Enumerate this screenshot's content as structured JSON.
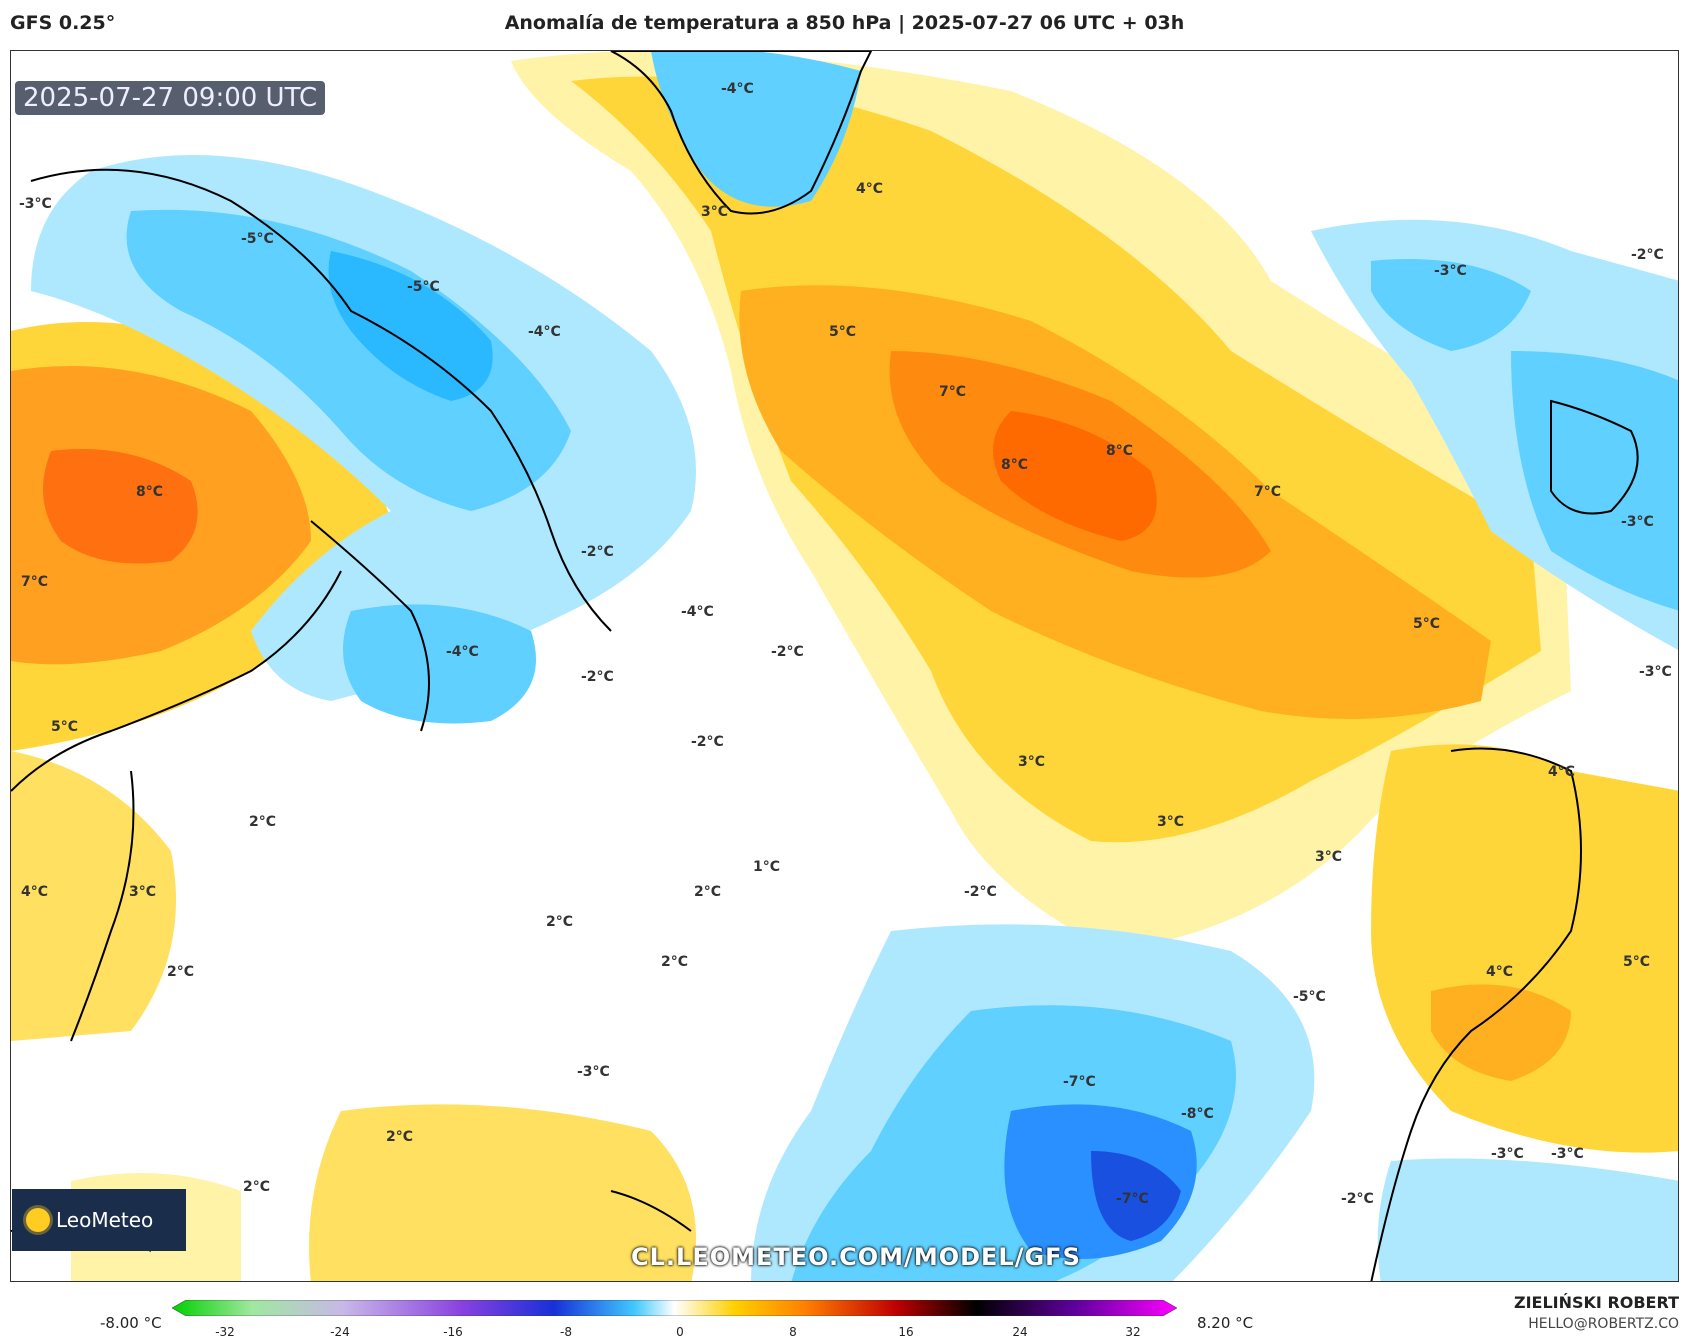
{
  "header": {
    "model": "GFS 0.25°",
    "title": "Anomalía de temperatura a 850 hPa | 2025-07-27 06 UTC + 03h"
  },
  "map": {
    "valid_time": "2025-07-27 09:00 UTC",
    "labels": [
      {
        "text": "-4°C"
      },
      {
        "text": "3°C"
      },
      {
        "text": "4°C"
      },
      {
        "text": "-3°C"
      },
      {
        "text": "-5°C"
      },
      {
        "text": "-5°C"
      },
      {
        "text": "-4°C"
      },
      {
        "text": "-3°C"
      },
      {
        "text": "-2°C"
      },
      {
        "text": "5°C"
      },
      {
        "text": "7°C"
      },
      {
        "text": "8°C"
      },
      {
        "text": "8°C"
      },
      {
        "text": "7°C"
      },
      {
        "text": "8°C"
      },
      {
        "text": "7°C"
      },
      {
        "text": "-3°C"
      },
      {
        "text": "-2°C"
      },
      {
        "text": "-4°C"
      },
      {
        "text": "-2°C"
      },
      {
        "text": "-4°C"
      },
      {
        "text": "-2°C"
      },
      {
        "text": "5°C"
      },
      {
        "text": "-3°C"
      },
      {
        "text": "-2°C"
      },
      {
        "text": "5°C"
      },
      {
        "text": "3°C"
      },
      {
        "text": "4°C"
      },
      {
        "text": "2°C"
      },
      {
        "text": "3°C"
      },
      {
        "text": "4°C"
      },
      {
        "text": "3°C"
      },
      {
        "text": "3°C"
      },
      {
        "text": "1°C"
      },
      {
        "text": "2°C"
      },
      {
        "text": "2°C"
      },
      {
        "text": "-2°C"
      },
      {
        "text": "2°C"
      },
      {
        "text": "2°C"
      },
      {
        "text": "4°C"
      },
      {
        "text": "5°C"
      },
      {
        "text": "-5°C"
      },
      {
        "text": "-3°C"
      },
      {
        "text": "-7°C"
      },
      {
        "text": "-8°C"
      },
      {
        "text": "2°C"
      },
      {
        "text": "2°C"
      },
      {
        "text": "-7°C"
      },
      {
        "text": "-2°C"
      },
      {
        "text": "-3°C"
      },
      {
        "text": "-3°C"
      }
    ]
  },
  "branding": {
    "logo_text": "LeoMeteo",
    "site_url": "CL.LEOMETEO.COM/MODEL/GFS",
    "author": "ZIELIŃSKI ROBERT",
    "email": "HELLO@ROBERTZ.CO"
  },
  "colorbar": {
    "min_label": "-8.00 °C",
    "max_label": "8.20 °C",
    "ticks": [
      "-32",
      "-24",
      "-16",
      "-8",
      "0",
      "8",
      "16",
      "24",
      "32"
    ],
    "colors": [
      "#00d000",
      "#a0e8a0",
      "#c8b8e8",
      "#8840e0",
      "#1830d8",
      "#40c8ff",
      "#ffffff",
      "#ffd000",
      "#ff8000",
      "#c00000",
      "#000000",
      "#6000a0",
      "#ff00ff"
    ]
  }
}
